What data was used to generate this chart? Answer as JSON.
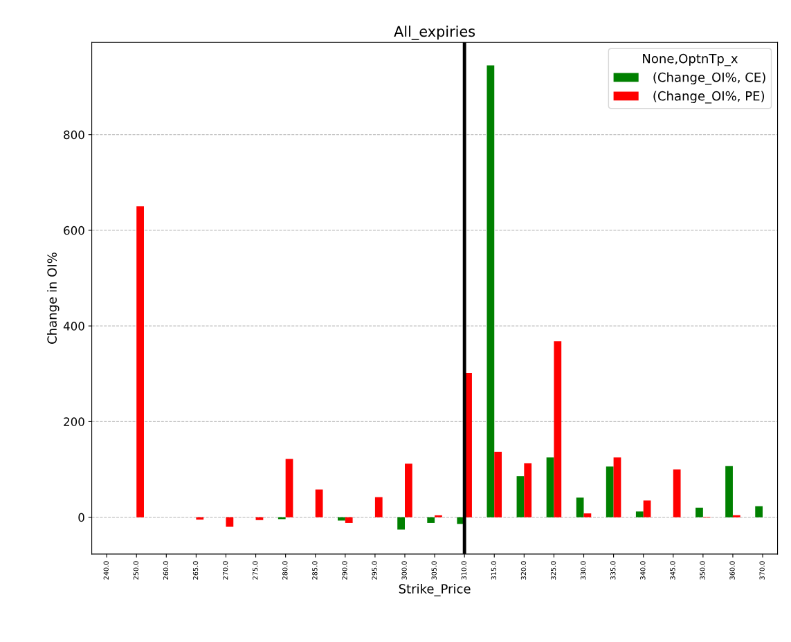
{
  "chart_data": {
    "type": "bar",
    "title": "All_expiries",
    "xlabel": "Strike_Price",
    "ylabel": "Change in OI%",
    "legend_title": "None,OptnTp_x",
    "categories": [
      "240.0",
      "250.0",
      "260.0",
      "265.0",
      "270.0",
      "275.0",
      "280.0",
      "285.0",
      "290.0",
      "295.0",
      "300.0",
      "305.0",
      "310.0",
      "315.0",
      "320.0",
      "325.0",
      "330.0",
      "335.0",
      "340.0",
      "345.0",
      "350.0",
      "360.0",
      "370.0"
    ],
    "series": [
      {
        "name": " (Change_OI%, CE)",
        "color": "#008000",
        "values": [
          null,
          null,
          null,
          null,
          null,
          null,
          -4,
          null,
          -7,
          null,
          -26,
          -12,
          -14,
          945,
          86,
          125,
          41,
          106,
          12,
          null,
          20,
          107,
          23
        ]
      },
      {
        "name": " (Change_OI%, PE)",
        "color": "#ff0000",
        "values": [
          null,
          650,
          null,
          -5,
          -20,
          -6,
          122,
          58,
          -12,
          42,
          112,
          4,
          302,
          137,
          113,
          368,
          8,
          125,
          35,
          100,
          1,
          4,
          null
        ]
      }
    ],
    "ylim": [
      -77,
      993
    ],
    "yticks": [
      0,
      200,
      400,
      600,
      800
    ],
    "grid": "y",
    "legend": "top right",
    "ref_lines": [
      {
        "axis": "x",
        "value": "310.0",
        "color": "#000000"
      }
    ]
  }
}
